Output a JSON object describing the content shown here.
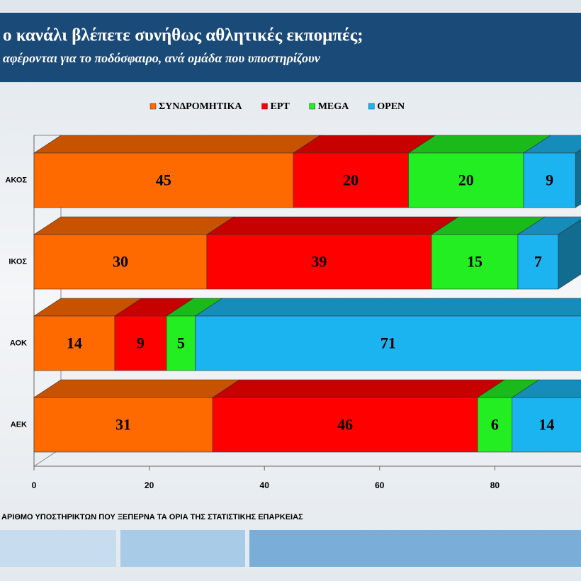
{
  "chart_data": {
    "type": "stacked_bar_3d",
    "title": "ο κανάλι βλέπετε συνήθως αθλητικές εκπομπές;",
    "subtitle": "αφέρονται για το ποδόσφαιρο, ανά ομάδα που υποστηρίζουν",
    "categories": [
      "ΑΚΟΣ",
      "ΙΚΟΣ",
      "ΑΟΚ",
      "ΑΕΚ"
    ],
    "series": [
      {
        "name": "ΣΥΝΔΡΟΜΗΤΙΚΑ",
        "color": "#ff6a00",
        "values": [
          45,
          30,
          14,
          31
        ]
      },
      {
        "name": "ΕΡΤ",
        "color": "#ff0000",
        "values": [
          20,
          39,
          9,
          46
        ]
      },
      {
        "name": "MEGA",
        "color": "#22ee22",
        "values": [
          20,
          15,
          5,
          6
        ]
      },
      {
        "name": "OPEN",
        "color": "#1cb4f0",
        "values": [
          9,
          7,
          71,
          14
        ]
      }
    ],
    "xlim": [
      0,
      100
    ],
    "xticks": [
      0,
      20,
      40,
      60,
      80
    ],
    "footnote": "ΑΡΙΘΜΟ ΥΠΟΣΤΗΡΙΚΤΩΝ ΠΟΥ ΞΕΠΕΡΝΑ ΤΑ ΟΡΙΑ ΤΗΣ ΣΤΑΤΙΣΤΙΚΗΣ ΕΠΑΡΚΕΙΑΣ"
  }
}
